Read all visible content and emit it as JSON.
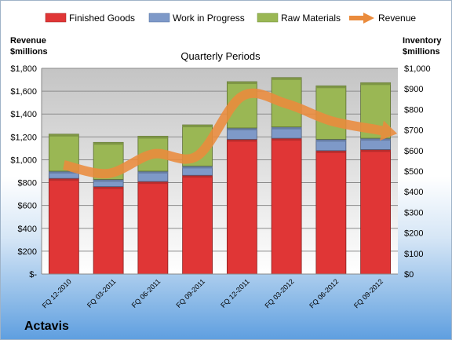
{
  "company": "Actavis",
  "chart_data": {
    "type": "bar",
    "stacked": true,
    "title": "Quarterly Periods",
    "categories": [
      "FQ 12-2010",
      "FQ 03-2011",
      "FQ 06-2011",
      "FQ 09-2011",
      "FQ 12-2011",
      "FQ 03-2012",
      "FQ 06-2012",
      "FQ 09-2012"
    ],
    "left_axis": {
      "title_line1": "Revenue",
      "title_line2": "$millions",
      "ylim": [
        0,
        1800
      ],
      "ticks": [
        "$-",
        "$200",
        "$400",
        "$600",
        "$800",
        "$1,000",
        "$1,200",
        "$1,400",
        "$1,600",
        "$1,800"
      ]
    },
    "right_axis": {
      "title_line1": "Inventory",
      "title_line2": "$millions",
      "ylim": [
        0,
        1000
      ],
      "ticks": [
        "$0",
        "$100",
        "$200",
        "$300",
        "$400",
        "$500",
        "$600",
        "$700",
        "$800",
        "$900",
        "$1,000"
      ]
    },
    "series": [
      {
        "name": "Finished Goods",
        "axis": "right",
        "color": "#e03636",
        "values": [
          465,
          425,
          450,
          480,
          655,
          660,
          600,
          605
        ]
      },
      {
        "name": "Work in Progress",
        "axis": "right",
        "color": "#7e99c8",
        "values": [
          35,
          35,
          50,
          45,
          55,
          55,
          55,
          55
        ]
      },
      {
        "name": "Raw Materials",
        "axis": "right",
        "color": "#9ab754",
        "values": [
          180,
          180,
          170,
          200,
          225,
          240,
          260,
          270
        ]
      },
      {
        "name": "Revenue",
        "axis": "left",
        "type": "line",
        "color": "#ea8b3c",
        "values": [
          955,
          880,
          1050,
          1035,
          1555,
          1490,
          1340,
          1265
        ]
      }
    ],
    "grid": true,
    "legend_position": "top"
  }
}
